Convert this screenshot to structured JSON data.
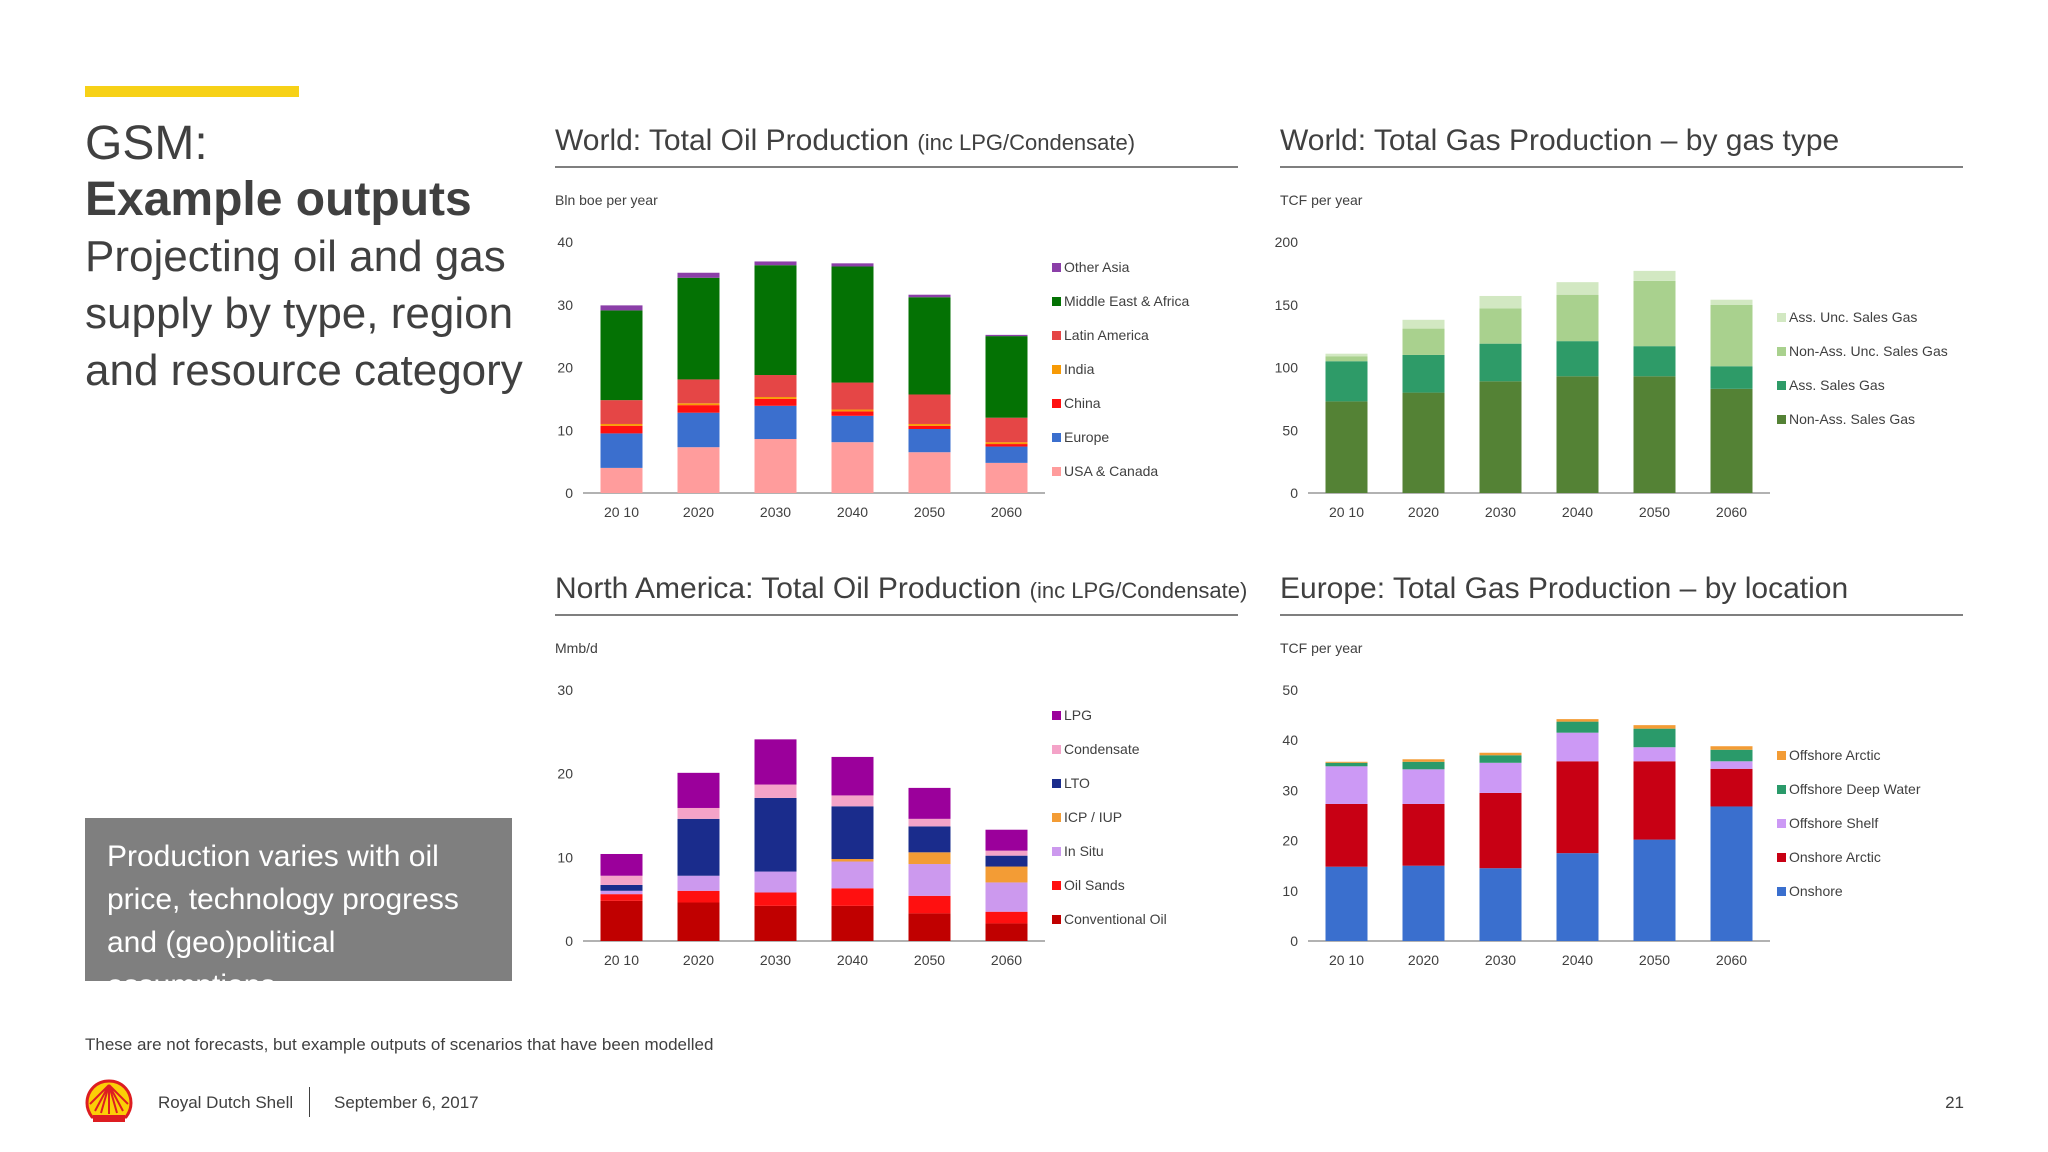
{
  "slide": {
    "title_line1": "GSM:",
    "title_line2": "Example outputs",
    "subtitle": "Projecting oil and gas supply by type, region and resource category",
    "callout": "Production varies with oil price, technology progress and (geo)political assumptions",
    "disclaimer": "These are not forecasts, but example outputs of scenarios that have been modelled",
    "footer": {
      "company": "Royal Dutch Shell",
      "date": "September 6, 2017",
      "page": "21"
    },
    "colors": {
      "accent": "#f7d117",
      "callout_bg": "#7f7f7f",
      "logo_red": "#dd1d21",
      "logo_yellow": "#fbce07"
    }
  },
  "chart_data": [
    {
      "id": "world-oil",
      "type": "bar",
      "stacked": true,
      "title": "World: Total Oil Production",
      "title_suffix": "(inc LPG/Condensate)",
      "unit": "Bln boe per year",
      "categories": [
        "2010",
        "2020",
        "2030",
        "2040",
        "2050",
        "2060"
      ],
      "category_labels": [
        "20 10",
        "2020",
        "2030",
        "2040",
        "2050",
        "2060"
      ],
      "ylim": [
        0,
        40
      ],
      "yticks": [
        0,
        10,
        20,
        30,
        40
      ],
      "series": [
        {
          "name": "USA & Canada",
          "color": "#ff9c9c",
          "values": [
            4,
            7.3,
            8.6,
            8.1,
            6.5,
            4.8
          ]
        },
        {
          "name": "Europe",
          "color": "#3b6fce",
          "values": [
            5.5,
            5.5,
            5.3,
            4.2,
            3.7,
            2.6
          ]
        },
        {
          "name": "China",
          "color": "#ff1010",
          "values": [
            1.2,
            1.2,
            1.1,
            0.7,
            0.5,
            0.4
          ]
        },
        {
          "name": "India",
          "color": "#f79a05",
          "values": [
            0.3,
            0.3,
            0.3,
            0.3,
            0.3,
            0.3
          ]
        },
        {
          "name": "Latin America",
          "color": "#e54646",
          "values": [
            3.8,
            3.8,
            3.5,
            4.3,
            4.7,
            3.9
          ]
        },
        {
          "name": "Middle East & Africa",
          "color": "#047204",
          "values": [
            14.3,
            16.2,
            17.5,
            18.5,
            15.5,
            13.0
          ]
        },
        {
          "name": "Other Asia",
          "color": "#8b3fa8",
          "values": [
            0.8,
            0.8,
            0.6,
            0.5,
            0.4,
            0.2
          ]
        }
      ]
    },
    {
      "id": "world-gas",
      "type": "bar",
      "stacked": true,
      "title": "World: Total Gas Production – by gas type",
      "title_suffix": "",
      "unit": "TCF per year",
      "categories": [
        "2010",
        "2020",
        "2030",
        "2040",
        "2050",
        "2060"
      ],
      "category_labels": [
        "20 10",
        "2020",
        "2030",
        "2040",
        "2050",
        "2060"
      ],
      "ylim": [
        0,
        200
      ],
      "yticks": [
        0,
        50,
        100,
        150,
        200
      ],
      "series": [
        {
          "name": "Non-Ass. Sales Gas",
          "color": "#548235",
          "values": [
            73,
            80,
            89,
            93,
            93,
            83
          ]
        },
        {
          "name": "Ass. Sales Gas",
          "color": "#2e9b68",
          "values": [
            32,
            30,
            30,
            28,
            24,
            18
          ]
        },
        {
          "name": "Non-Ass. Unc. Sales Gas",
          "color": "#a9d18e",
          "values": [
            4,
            21,
            28,
            37,
            52,
            49
          ]
        },
        {
          "name": "Ass. Unc. Sales Gas",
          "color": "#d2e8c2",
          "values": [
            2,
            7,
            10,
            10,
            8,
            4
          ]
        }
      ]
    },
    {
      "id": "na-oil",
      "type": "bar",
      "stacked": true,
      "title": "North America: Total Oil Production",
      "title_suffix": "(inc LPG/Condensate)",
      "unit": "Mmb/d",
      "categories": [
        "2010",
        "2020",
        "2030",
        "2040",
        "2050",
        "2060"
      ],
      "category_labels": [
        "20 10",
        "2020",
        "2030",
        "2040",
        "2050",
        "2060"
      ],
      "ylim": [
        0,
        30
      ],
      "yticks": [
        0,
        10,
        20,
        30
      ],
      "series": [
        {
          "name": "Conventional Oil",
          "color": "#c00000",
          "values": [
            4.8,
            4.6,
            4.2,
            4.2,
            3.3,
            2.1
          ]
        },
        {
          "name": "Oil Sands",
          "color": "#ff1010",
          "values": [
            0.8,
            1.4,
            1.6,
            2.1,
            2.1,
            1.4
          ]
        },
        {
          "name": "In Situ",
          "color": "#cc99ee",
          "values": [
            0.4,
            1.8,
            2.5,
            3.2,
            3.8,
            3.5
          ]
        },
        {
          "name": "ICP / IUP",
          "color": "#f39c35",
          "values": [
            0,
            0,
            0,
            0.3,
            1.4,
            1.9
          ]
        },
        {
          "name": "LTO",
          "color": "#1a2c8c",
          "values": [
            0.7,
            6.8,
            8.8,
            6.3,
            3.1,
            1.3
          ]
        },
        {
          "name": "Condensate",
          "color": "#f4a3c8",
          "values": [
            1.1,
            1.3,
            1.6,
            1.3,
            0.9,
            0.6
          ]
        },
        {
          "name": "LPG",
          "color": "#9b009b",
          "values": [
            2.6,
            4.2,
            5.4,
            4.6,
            3.7,
            2.5
          ]
        }
      ]
    },
    {
      "id": "europe-gas",
      "type": "bar",
      "stacked": true,
      "title": "Europe: Total Gas Production – by location",
      "title_suffix": "",
      "unit": "TCF per year",
      "categories": [
        "2010",
        "2020",
        "2030",
        "2040",
        "2050",
        "2060"
      ],
      "category_labels": [
        "20 10",
        "2020",
        "2030",
        "2040",
        "2050",
        "2060"
      ],
      "ylim": [
        0,
        50
      ],
      "yticks": [
        0,
        10,
        20,
        30,
        40,
        50
      ],
      "series": [
        {
          "name": "Onshore",
          "color": "#3a6fce",
          "values": [
            14.8,
            15.0,
            14.5,
            17.5,
            20.2,
            26.8
          ]
        },
        {
          "name": "Onshore Arctic",
          "color": "#c80014",
          "values": [
            12.5,
            12.3,
            15.0,
            18.3,
            15.6,
            7.5
          ]
        },
        {
          "name": "Offshore Shelf",
          "color": "#cc99f5",
          "values": [
            7.5,
            6.9,
            6.0,
            5.7,
            2.8,
            1.5
          ]
        },
        {
          "name": "Offshore Deep Water",
          "color": "#2a9a6a",
          "values": [
            0.7,
            1.5,
            1.5,
            2.2,
            3.7,
            2.3
          ]
        },
        {
          "name": "Offshore Arctic",
          "color": "#f39c35",
          "values": [
            0.2,
            0.5,
            0.5,
            0.5,
            0.7,
            0.7
          ]
        }
      ]
    }
  ]
}
